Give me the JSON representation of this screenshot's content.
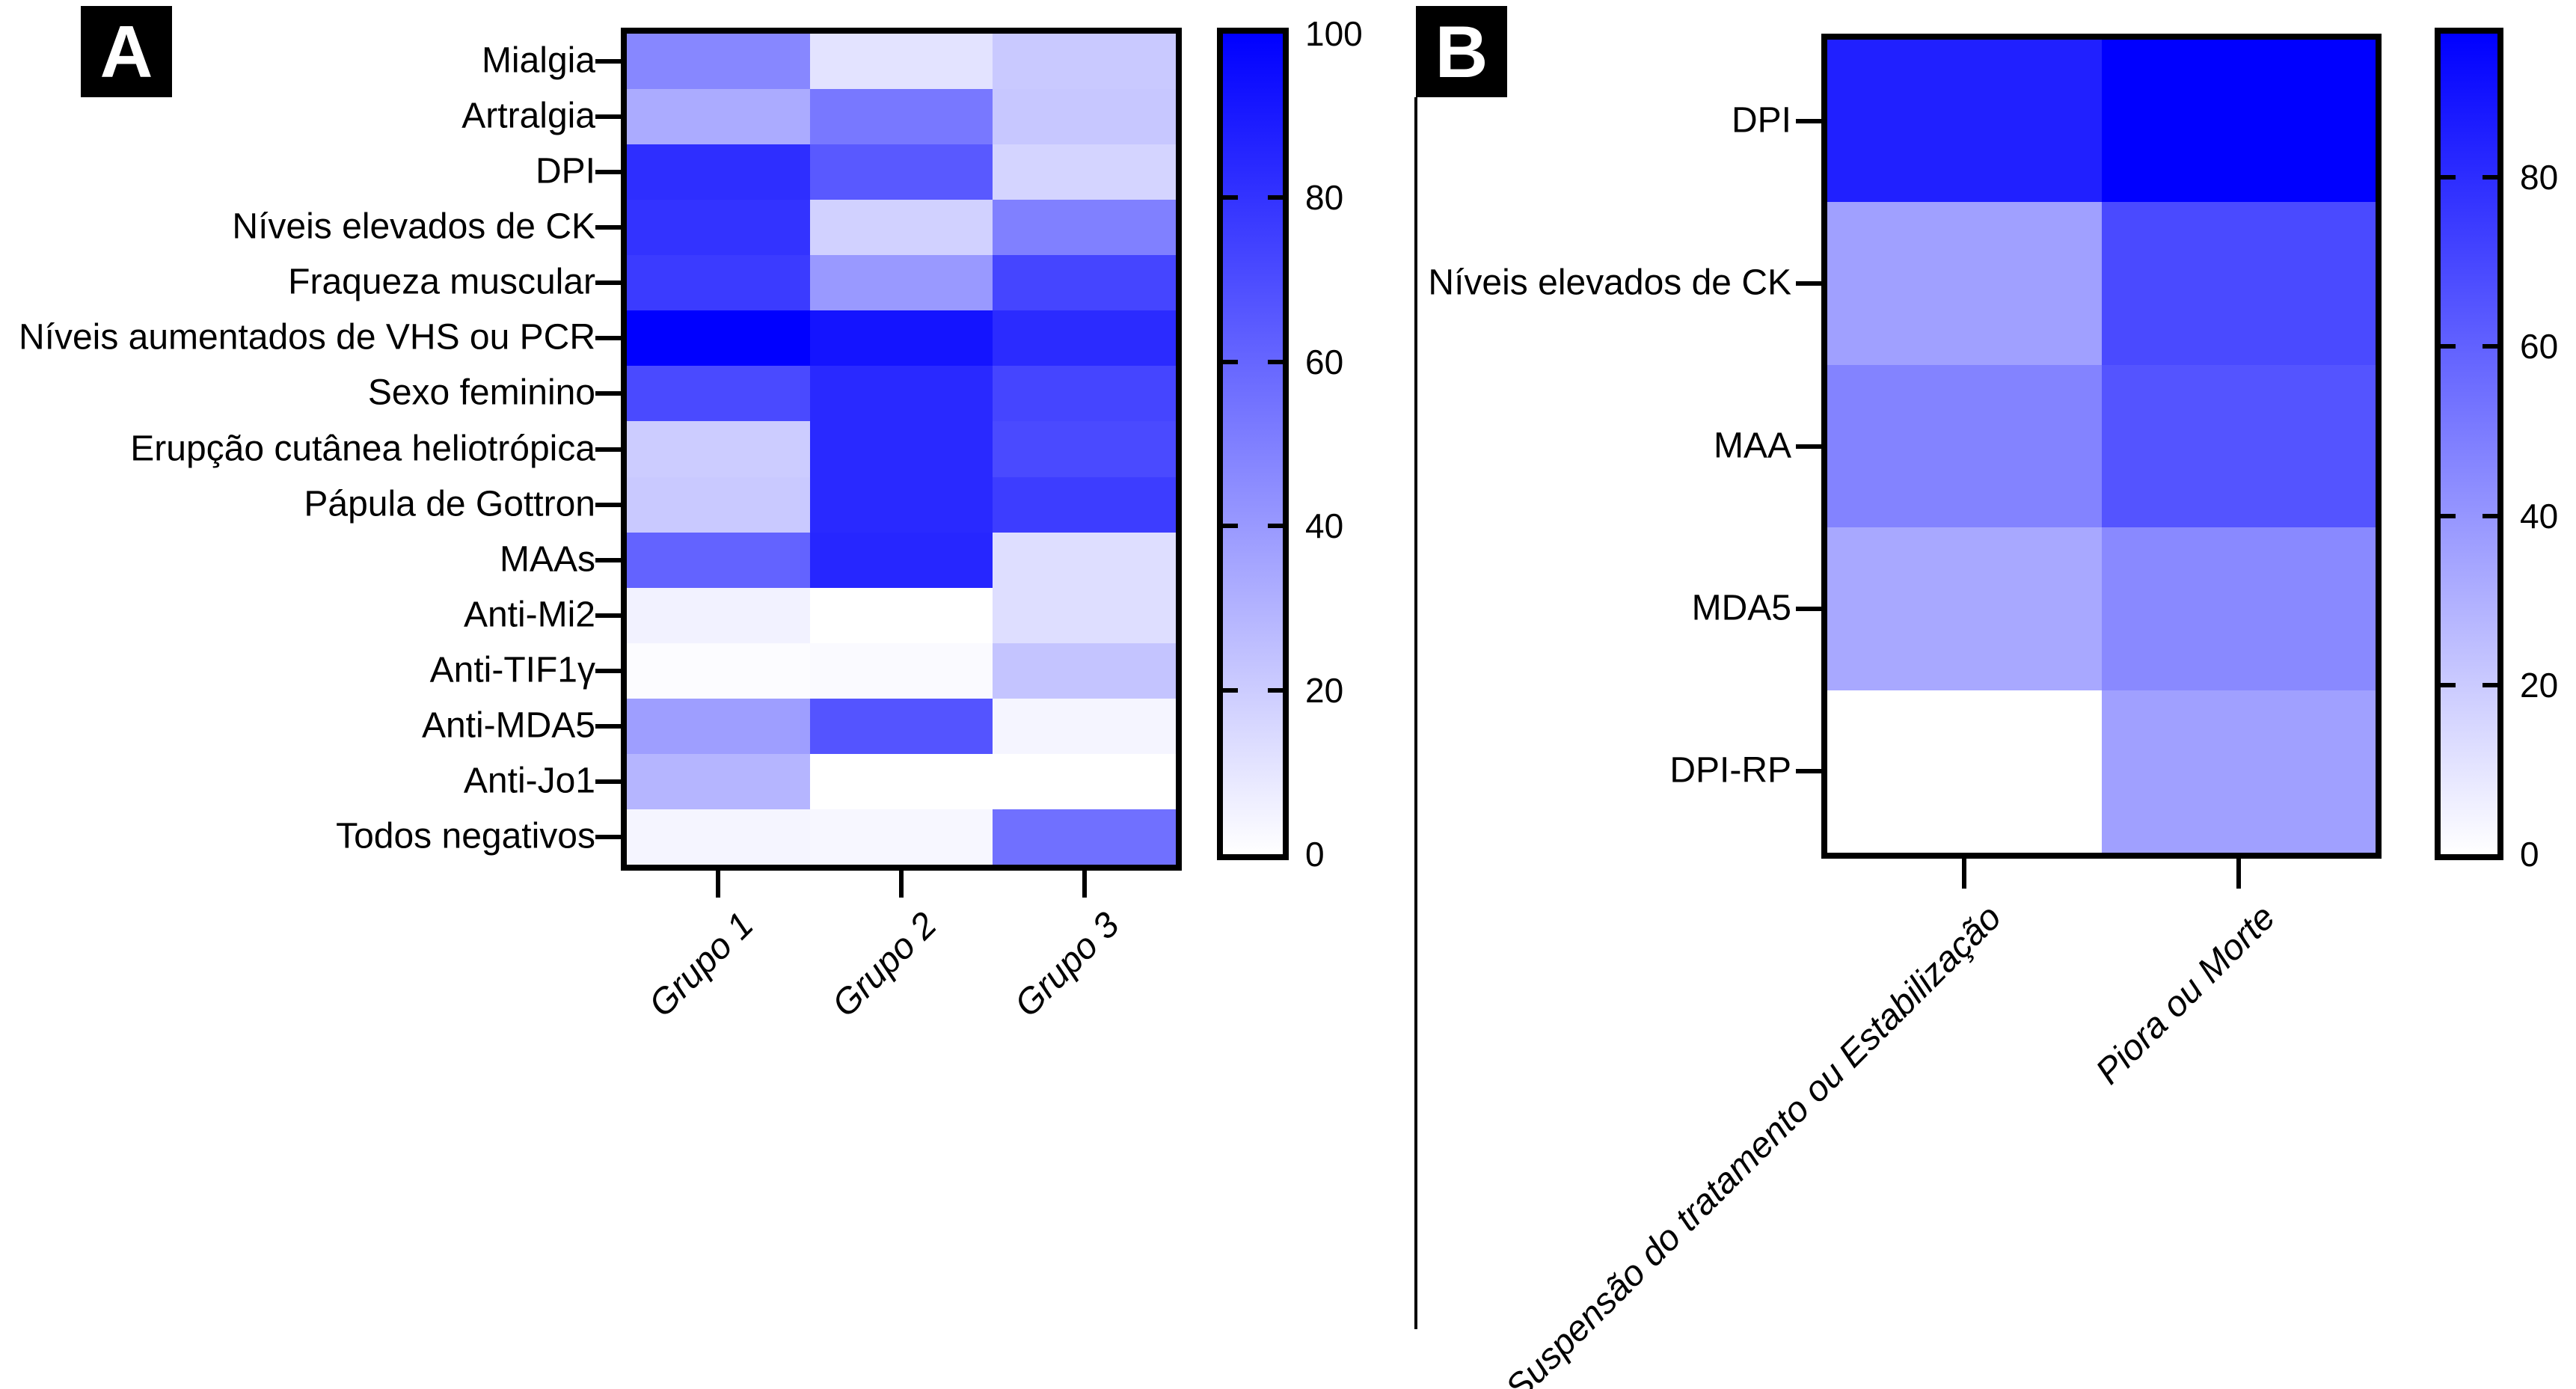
{
  "figure": {
    "background_color": "#ffffff",
    "panel_labels": [
      "A",
      "B"
    ]
  },
  "chart_data": [
    {
      "panel": "A",
      "type": "heatmap",
      "title": "",
      "rows": [
        "Mialgia",
        "Artralgia",
        "DPI",
        "Níveis elevados de CK",
        "Fraqueza muscular",
        "Níveis aumentados de VHS ou PCR",
        "Sexo feminino",
        "Erupção cutânea heliotrópica",
        "Pápula de Gottron",
        "MAAs",
        "Anti-Mi2",
        "Anti-TIF1γ",
        "Anti-MDA5",
        "Anti-Jo1",
        "Todos negativos"
      ],
      "columns": [
        "Grupo 1",
        "Grupo 2",
        "Grupo 3"
      ],
      "values": [
        [
          47,
          11,
          21
        ],
        [
          33,
          53,
          22
        ],
        [
          82,
          65,
          17
        ],
        [
          80,
          18,
          50
        ],
        [
          77,
          40,
          73
        ],
        [
          100,
          92,
          83
        ],
        [
          71,
          84,
          73
        ],
        [
          20,
          84,
          71
        ],
        [
          21,
          84,
          76
        ],
        [
          61,
          85,
          13
        ],
        [
          5,
          0,
          13
        ],
        [
          1,
          2,
          23
        ],
        [
          38,
          67,
          4
        ],
        [
          29,
          0,
          0
        ],
        [
          4,
          3,
          56
        ]
      ],
      "colorbar": {
        "min": 0,
        "max": 100,
        "tick_labels": [
          100,
          80,
          60,
          40,
          20,
          0
        ],
        "top_color": "#0000ff",
        "bottom_color": "#ffffff",
        "position": "right"
      }
    },
    {
      "panel": "B",
      "type": "heatmap",
      "title": "",
      "rows": [
        "DPI",
        "Níveis elevados de CK",
        "MAA",
        "MDA5",
        "DPI-RP"
      ],
      "columns": [
        "Suspensão do tratamento ou Estabilização",
        "Piora ou Morte"
      ],
      "values": [
        [
          85,
          97
        ],
        [
          36,
          69
        ],
        [
          47,
          65
        ],
        [
          33,
          45
        ],
        [
          0,
          36
        ]
      ],
      "colorbar": {
        "min": 0,
        "max": 97,
        "tick_labels": [
          80,
          60,
          40,
          20,
          0
        ],
        "top_color": "#0000ff",
        "bottom_color": "#ffffff",
        "position": "right"
      }
    }
  ]
}
